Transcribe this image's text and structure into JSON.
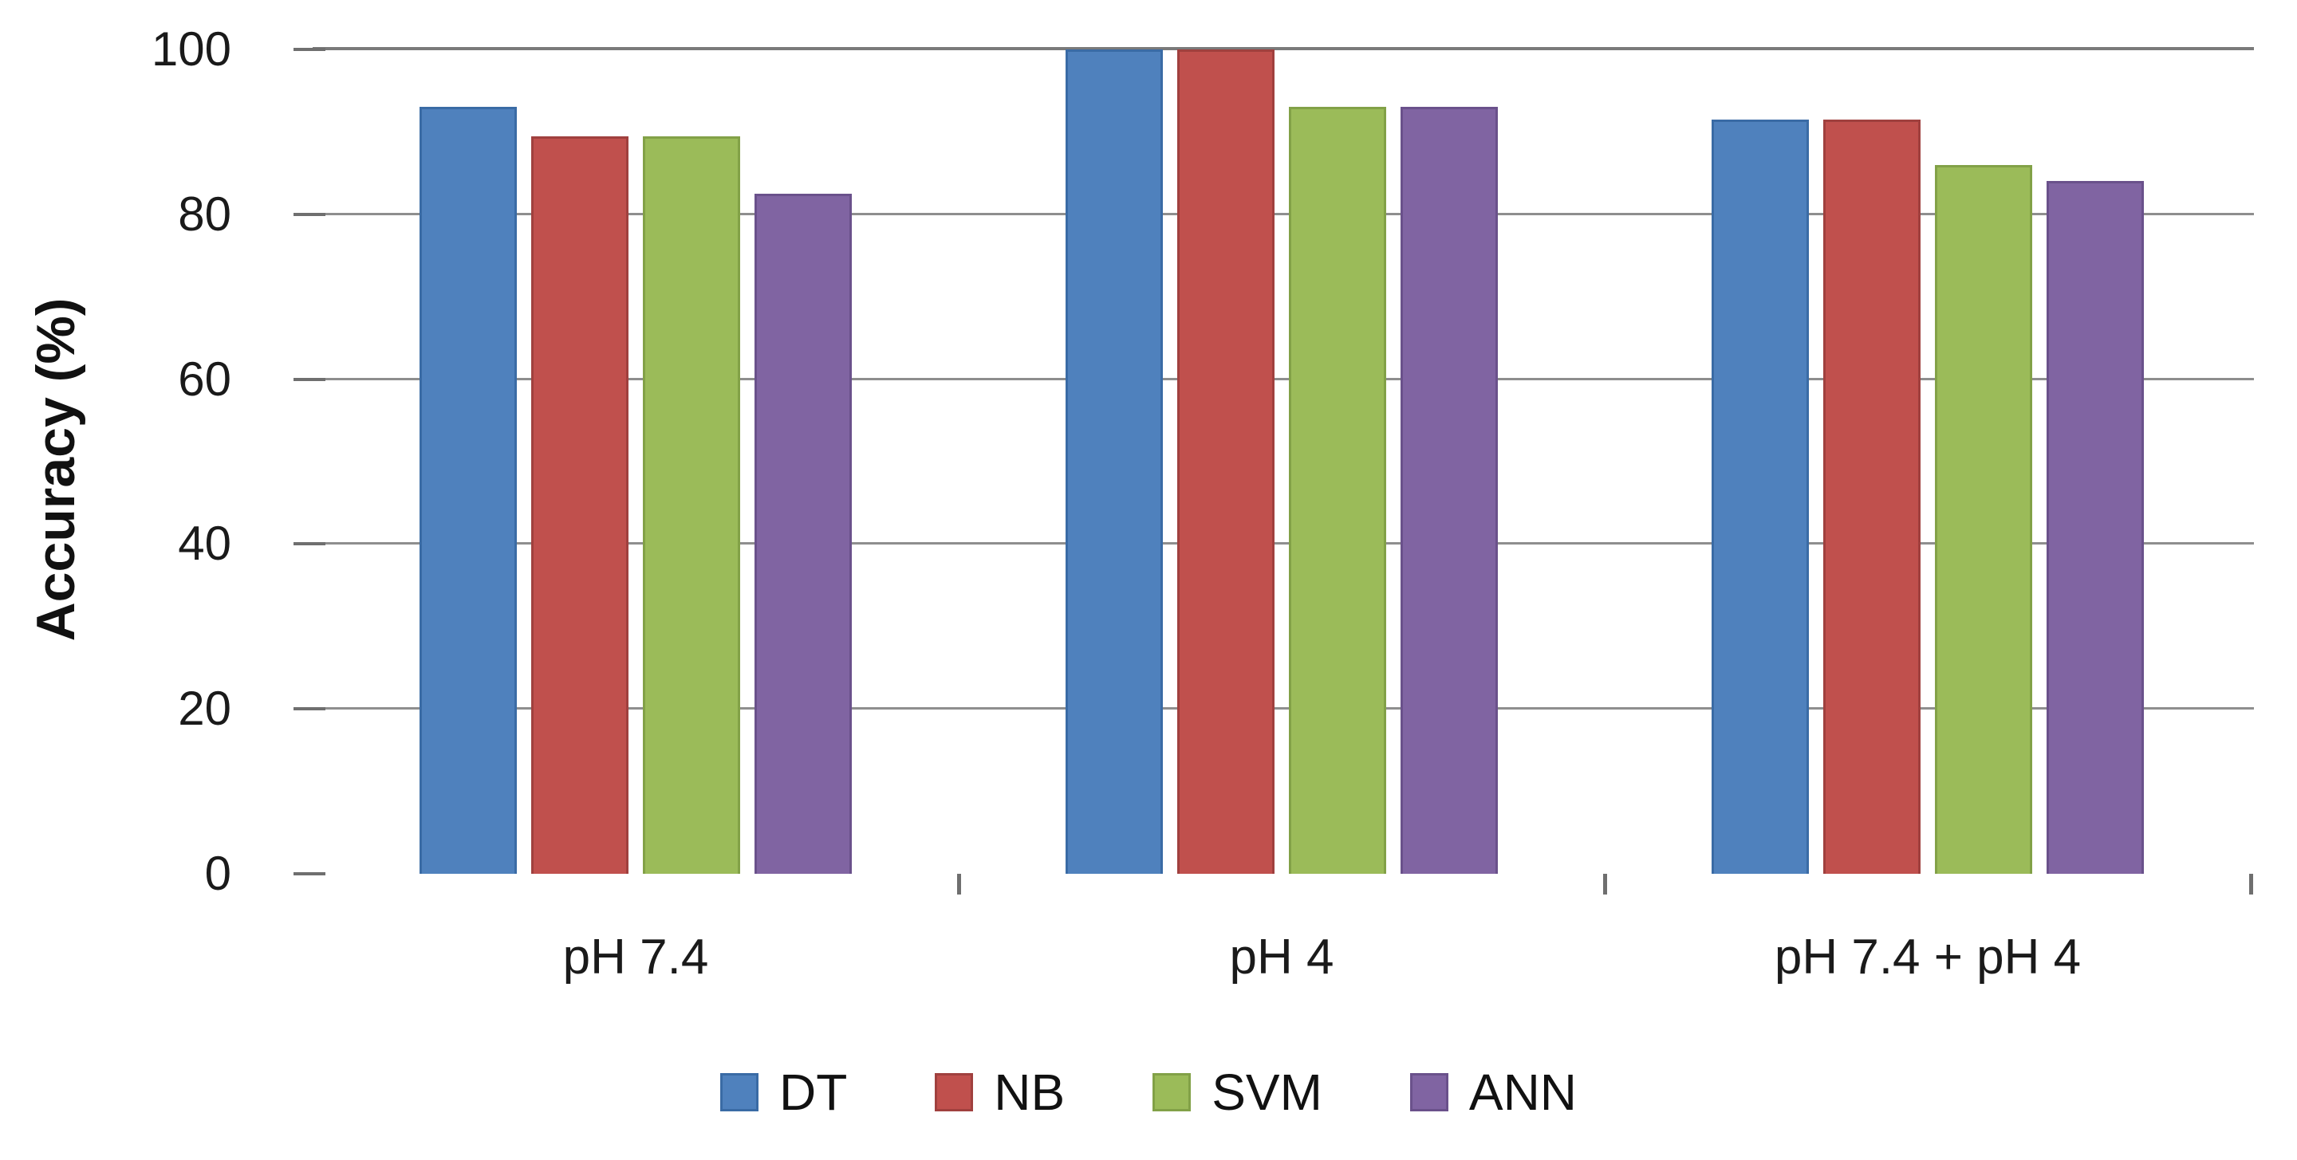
{
  "chart_data": {
    "type": "bar",
    "title": "",
    "ylabel": "Accuracy (%)",
    "xlabel": "",
    "ylim": [
      0,
      100
    ],
    "yticks": [
      0,
      20,
      40,
      60,
      80,
      100
    ],
    "grid": true,
    "legend_position": "bottom",
    "categories": [
      "pH 7.4",
      "pH 4",
      "pH 7.4 + pH 4"
    ],
    "series": [
      {
        "name": "DT",
        "color": "#4F81BD",
        "border_color": "#3A6BA5",
        "values": [
          93,
          100,
          91.5
        ]
      },
      {
        "name": "NB",
        "color": "#C0504D",
        "border_color": "#A0403E",
        "values": [
          89.5,
          100,
          91.5
        ]
      },
      {
        "name": "SVM",
        "color": "#9BBB59",
        "border_color": "#82A147",
        "values": [
          89.5,
          93,
          86
        ]
      },
      {
        "name": "ANN",
        "color": "#8064A2",
        "border_color": "#6A518B",
        "values": [
          82.5,
          93,
          84
        ]
      }
    ],
    "colors": {
      "axis": "#6F6F6F",
      "gridline": "#8E8E8E",
      "top_line": "#7A7A7A",
      "text": "#1A1A1A"
    }
  }
}
